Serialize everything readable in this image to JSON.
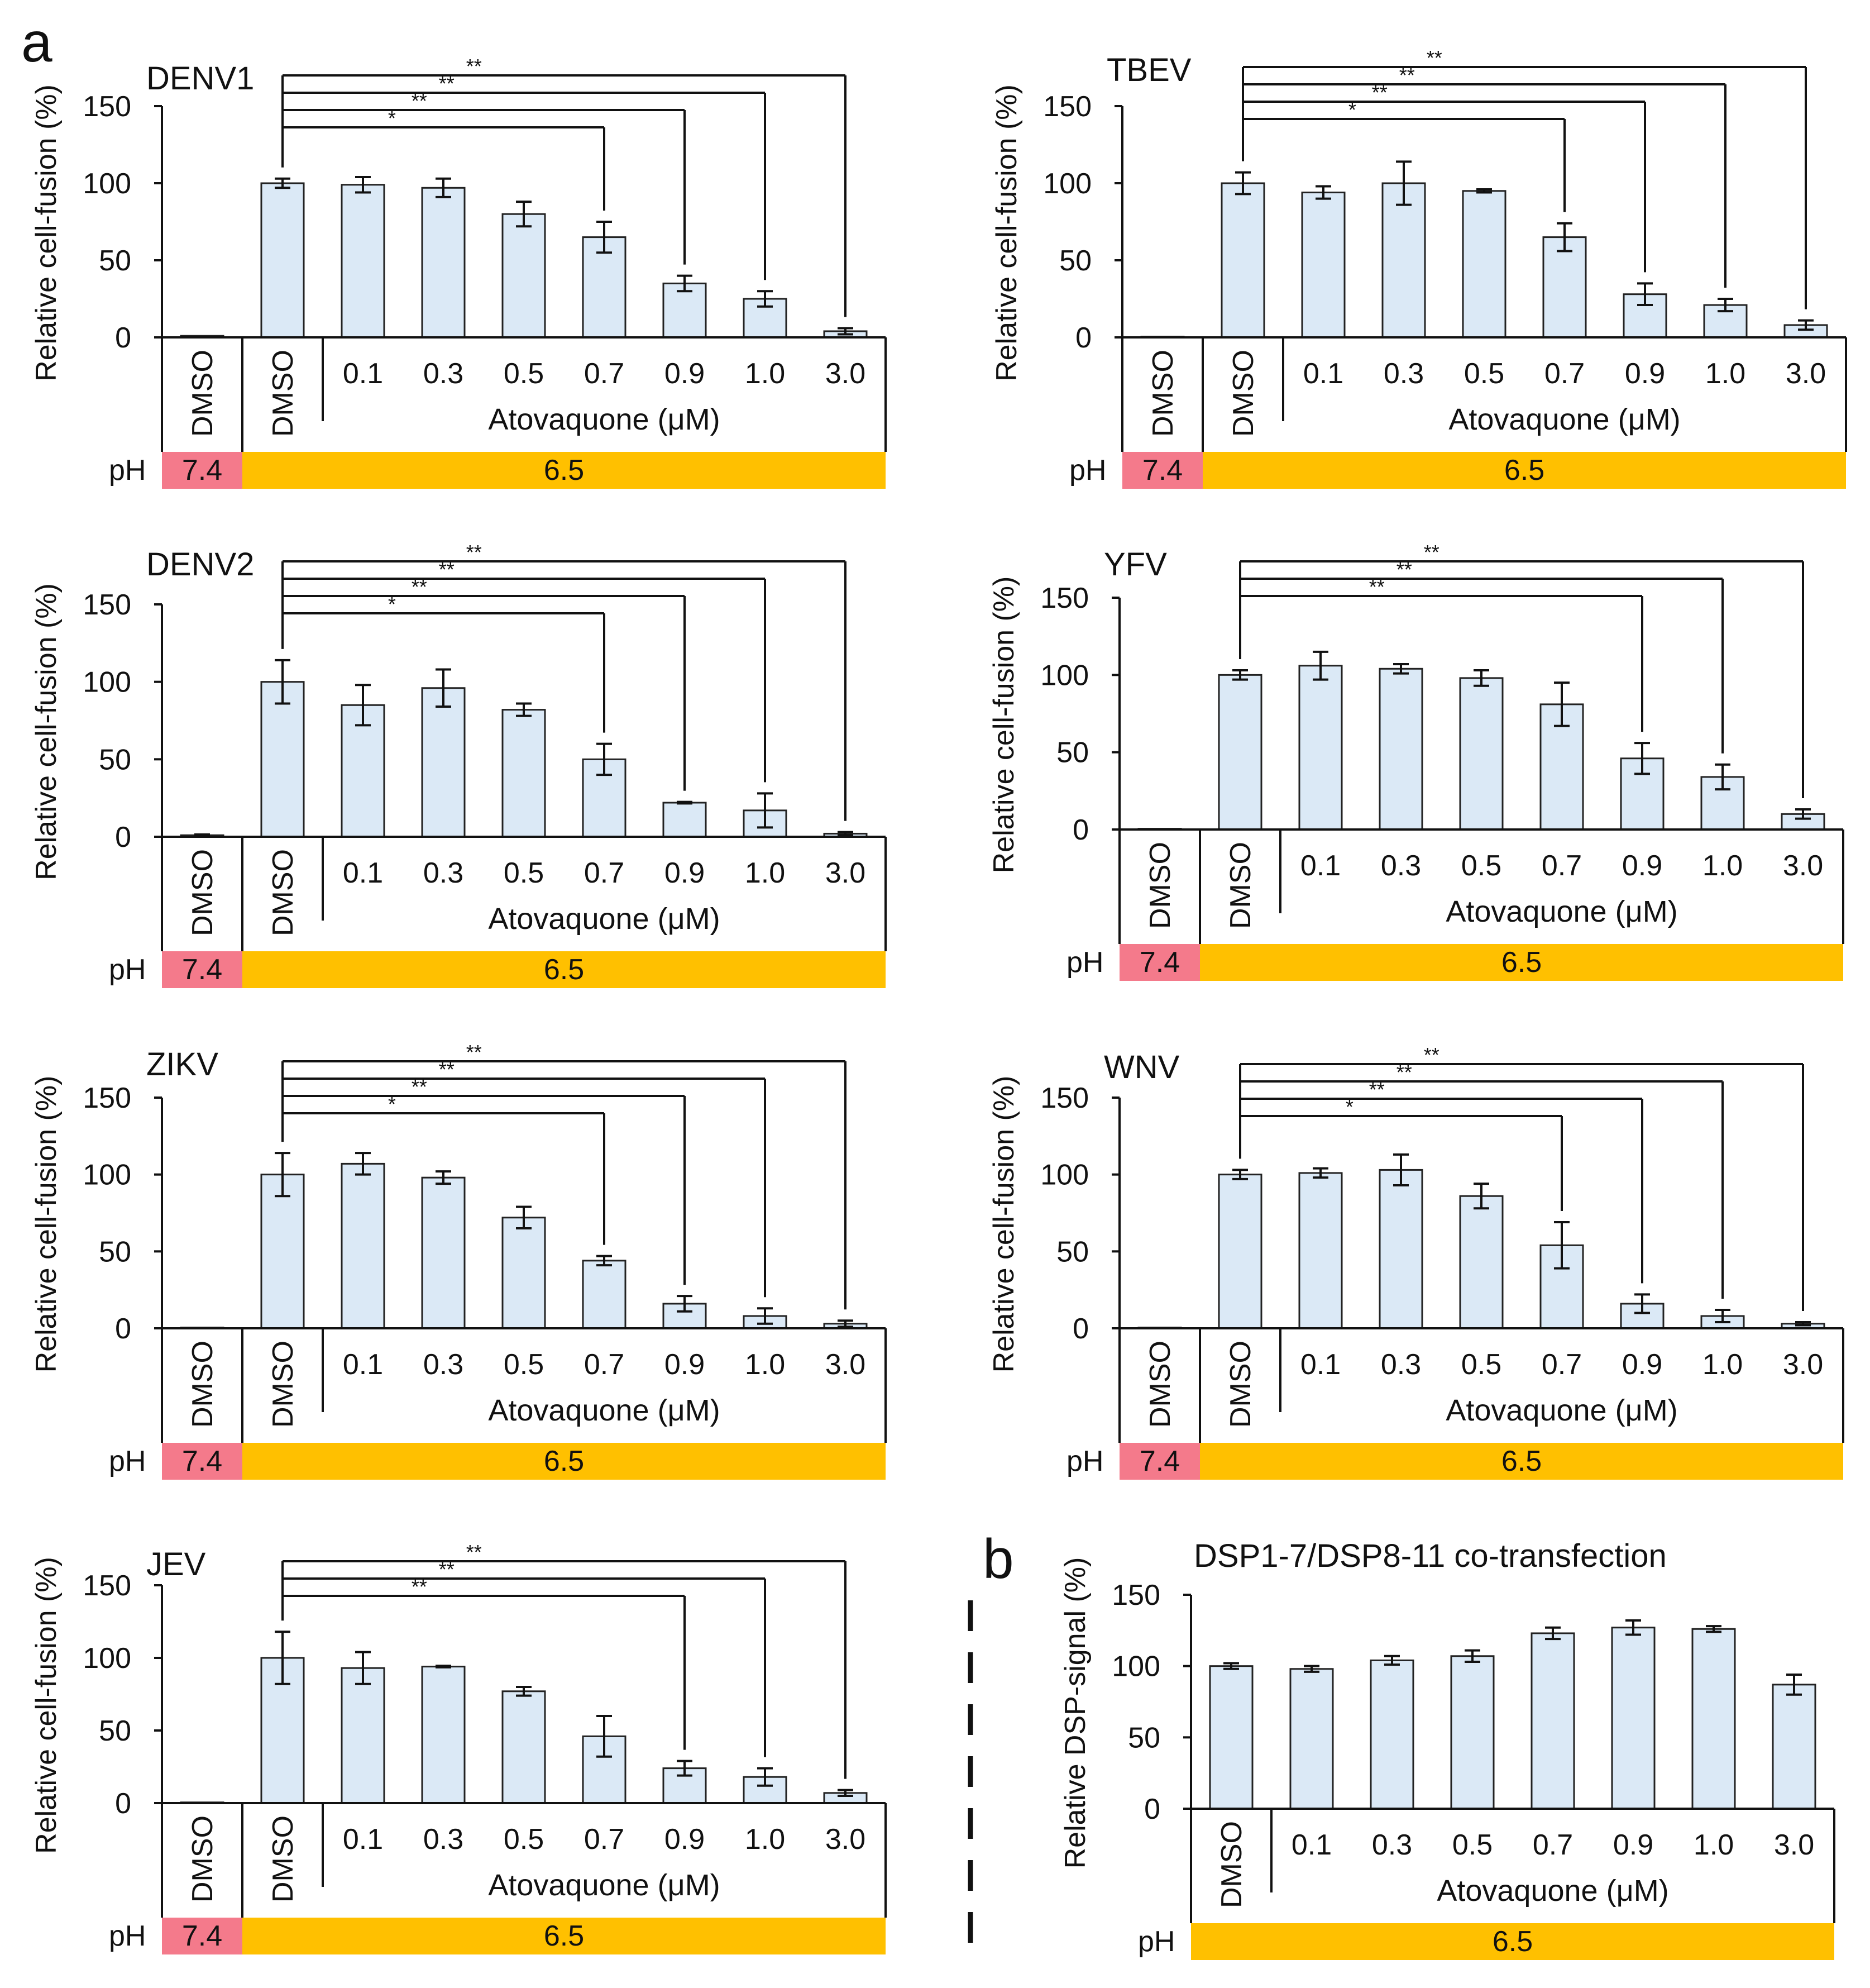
{
  "figure": {
    "label_a": "a",
    "label_b": "b",
    "colors": {
      "bar_fill": "#dbe9f6",
      "bar_stroke": "#222222",
      "ph_neutral": "#f47a8b",
      "ph_acidic": "#ffc000",
      "line": "#111111"
    }
  },
  "chart_data": [
    {
      "id": "denv1",
      "type": "bar",
      "title": "DENV1",
      "ylabel": "Relative cell-fusion (%)",
      "xlabel": "Atovaquone (μM)",
      "ylim": [
        0,
        150
      ],
      "yticks": [
        0,
        50,
        100,
        150
      ],
      "categories": [
        "DMSO",
        "DMSO",
        "0.1",
        "0.3",
        "0.5",
        "0.7",
        "0.9",
        "1.0",
        "3.0"
      ],
      "values": [
        1,
        100,
        99,
        97,
        80,
        65,
        35,
        25,
        4
      ],
      "errors": [
        0,
        3,
        5,
        6,
        8,
        10,
        5,
        5,
        2
      ],
      "ph_label": "pH",
      "ph_neutral": "7.4",
      "ph_acidic": "6.5",
      "significance": [
        {
          "from": 1,
          "to": 5,
          "label": "*"
        },
        {
          "from": 1,
          "to": 6,
          "label": "**"
        },
        {
          "from": 1,
          "to": 7,
          "label": "**"
        },
        {
          "from": 1,
          "to": 8,
          "label": "**"
        }
      ]
    },
    {
      "id": "tbev",
      "type": "bar",
      "title": "TBEV",
      "ylabel": "Relative cell-fusion (%)",
      "xlabel": "Atovaquone (μM)",
      "ylim": [
        0,
        150
      ],
      "yticks": [
        0,
        50,
        100,
        150
      ],
      "categories": [
        "DMSO",
        "DMSO",
        "0.1",
        "0.3",
        "0.5",
        "0.7",
        "0.9",
        "1.0",
        "3.0"
      ],
      "values": [
        0.5,
        100,
        94,
        100,
        95,
        65,
        28,
        21,
        8
      ],
      "errors": [
        0,
        7,
        4,
        14,
        1,
        9,
        7,
        4,
        3
      ],
      "ph_label": "pH",
      "ph_neutral": "7.4",
      "ph_acidic": "6.5",
      "significance": [
        {
          "from": 1,
          "to": 5,
          "label": "*"
        },
        {
          "from": 1,
          "to": 6,
          "label": "**"
        },
        {
          "from": 1,
          "to": 7,
          "label": "**"
        },
        {
          "from": 1,
          "to": 8,
          "label": "**"
        }
      ]
    },
    {
      "id": "denv2",
      "type": "bar",
      "title": "DENV2",
      "ylabel": "Relative cell-fusion (%)",
      "xlabel": "Atovaquone (μM)",
      "ylim": [
        0,
        150
      ],
      "yticks": [
        0,
        50,
        100,
        150
      ],
      "categories": [
        "DMSO",
        "DMSO",
        "0.1",
        "0.3",
        "0.5",
        "0.7",
        "0.9",
        "1.0",
        "3.0"
      ],
      "values": [
        1,
        100,
        85,
        96,
        82,
        50,
        22,
        17,
        2
      ],
      "errors": [
        0.5,
        14,
        13,
        12,
        4,
        10,
        0.5,
        11,
        1
      ],
      "ph_label": "pH",
      "ph_neutral": "7.4",
      "ph_acidic": "6.5",
      "significance": [
        {
          "from": 1,
          "to": 5,
          "label": "*"
        },
        {
          "from": 1,
          "to": 6,
          "label": "**"
        },
        {
          "from": 1,
          "to": 7,
          "label": "**"
        },
        {
          "from": 1,
          "to": 8,
          "label": "**"
        }
      ]
    },
    {
      "id": "yfv",
      "type": "bar",
      "title": "YFV",
      "ylabel": "Relative cell-fusion (%)",
      "xlabel": "Atovaquone (μM)",
      "ylim": [
        0,
        150
      ],
      "yticks": [
        0,
        50,
        100,
        150
      ],
      "categories": [
        "DMSO",
        "DMSO",
        "0.1",
        "0.3",
        "0.5",
        "0.7",
        "0.9",
        "1.0",
        "3.0"
      ],
      "values": [
        0.5,
        100,
        106,
        104,
        98,
        81,
        46,
        34,
        10
      ],
      "errors": [
        0,
        3,
        9,
        3,
        5,
        14,
        10,
        8,
        3
      ],
      "ph_label": "pH",
      "ph_neutral": "7.4",
      "ph_acidic": "6.5",
      "significance": [
        {
          "from": 1,
          "to": 6,
          "label": "**"
        },
        {
          "from": 1,
          "to": 7,
          "label": "**"
        },
        {
          "from": 1,
          "to": 8,
          "label": "**"
        }
      ]
    },
    {
      "id": "zikv",
      "type": "bar",
      "title": "ZIKV",
      "ylabel": "Relative cell-fusion (%)",
      "xlabel": "Atovaquone (μM)",
      "ylim": [
        0,
        150
      ],
      "yticks": [
        0,
        50,
        100,
        150
      ],
      "categories": [
        "DMSO",
        "DMSO",
        "0.1",
        "0.3",
        "0.5",
        "0.7",
        "0.9",
        "1.0",
        "3.0"
      ],
      "values": [
        0.5,
        100,
        107,
        98,
        72,
        44,
        16,
        8,
        3
      ],
      "errors": [
        0,
        14,
        7,
        4,
        7,
        3,
        5,
        5,
        2
      ],
      "ph_label": "pH",
      "ph_neutral": "7.4",
      "ph_acidic": "6.5",
      "significance": [
        {
          "from": 1,
          "to": 5,
          "label": "*"
        },
        {
          "from": 1,
          "to": 6,
          "label": "**"
        },
        {
          "from": 1,
          "to": 7,
          "label": "**"
        },
        {
          "from": 1,
          "to": 8,
          "label": "**"
        }
      ]
    },
    {
      "id": "wnv",
      "type": "bar",
      "title": "WNV",
      "ylabel": "Relative cell-fusion (%)",
      "xlabel": "Atovaquone (μM)",
      "ylim": [
        0,
        150
      ],
      "yticks": [
        0,
        50,
        100,
        150
      ],
      "categories": [
        "DMSO",
        "DMSO",
        "0.1",
        "0.3",
        "0.5",
        "0.7",
        "0.9",
        "1.0",
        "3.0"
      ],
      "values": [
        0.5,
        100,
        101,
        103,
        86,
        54,
        16,
        8,
        3
      ],
      "errors": [
        0,
        3,
        3,
        10,
        8,
        15,
        6,
        4,
        1
      ],
      "ph_label": "pH",
      "ph_neutral": "7.4",
      "ph_acidic": "6.5",
      "significance": [
        {
          "from": 1,
          "to": 5,
          "label": "*"
        },
        {
          "from": 1,
          "to": 6,
          "label": "**"
        },
        {
          "from": 1,
          "to": 7,
          "label": "**"
        },
        {
          "from": 1,
          "to": 8,
          "label": "**"
        }
      ]
    },
    {
      "id": "jev",
      "type": "bar",
      "title": "JEV",
      "ylabel": "Relative cell-fusion (%)",
      "xlabel": "Atovaquone (μM)",
      "ylim": [
        0,
        150
      ],
      "yticks": [
        0,
        50,
        100,
        150
      ],
      "categories": [
        "DMSO",
        "DMSO",
        "0.1",
        "0.3",
        "0.5",
        "0.7",
        "0.9",
        "1.0",
        "3.0"
      ],
      "values": [
        0.5,
        100,
        93,
        94,
        77,
        46,
        24,
        18,
        7
      ],
      "errors": [
        0,
        18,
        11,
        0.5,
        3,
        14,
        5,
        6,
        2
      ],
      "ph_label": "pH",
      "ph_neutral": "7.4",
      "ph_acidic": "6.5",
      "significance": [
        {
          "from": 1,
          "to": 6,
          "label": "**"
        },
        {
          "from": 1,
          "to": 7,
          "label": "**"
        },
        {
          "from": 1,
          "to": 8,
          "label": "**"
        }
      ]
    },
    {
      "id": "dsp",
      "type": "bar",
      "title": "DSP1-7/DSP8-11 co-transfection",
      "ylabel": "Relative DSP-signal (%)",
      "xlabel": "Atovaquone (μM)",
      "ylim": [
        0,
        150
      ],
      "yticks": [
        0,
        50,
        100,
        150
      ],
      "categories": [
        "DMSO",
        "0.1",
        "0.3",
        "0.5",
        "0.7",
        "0.9",
        "1.0",
        "3.0"
      ],
      "values": [
        100,
        98,
        104,
        107,
        123,
        127,
        126,
        87
      ],
      "errors": [
        2,
        2,
        3,
        4,
        4,
        5,
        2,
        7
      ],
      "ph_label": "pH",
      "ph_acidic": "6.5",
      "significance": []
    }
  ]
}
